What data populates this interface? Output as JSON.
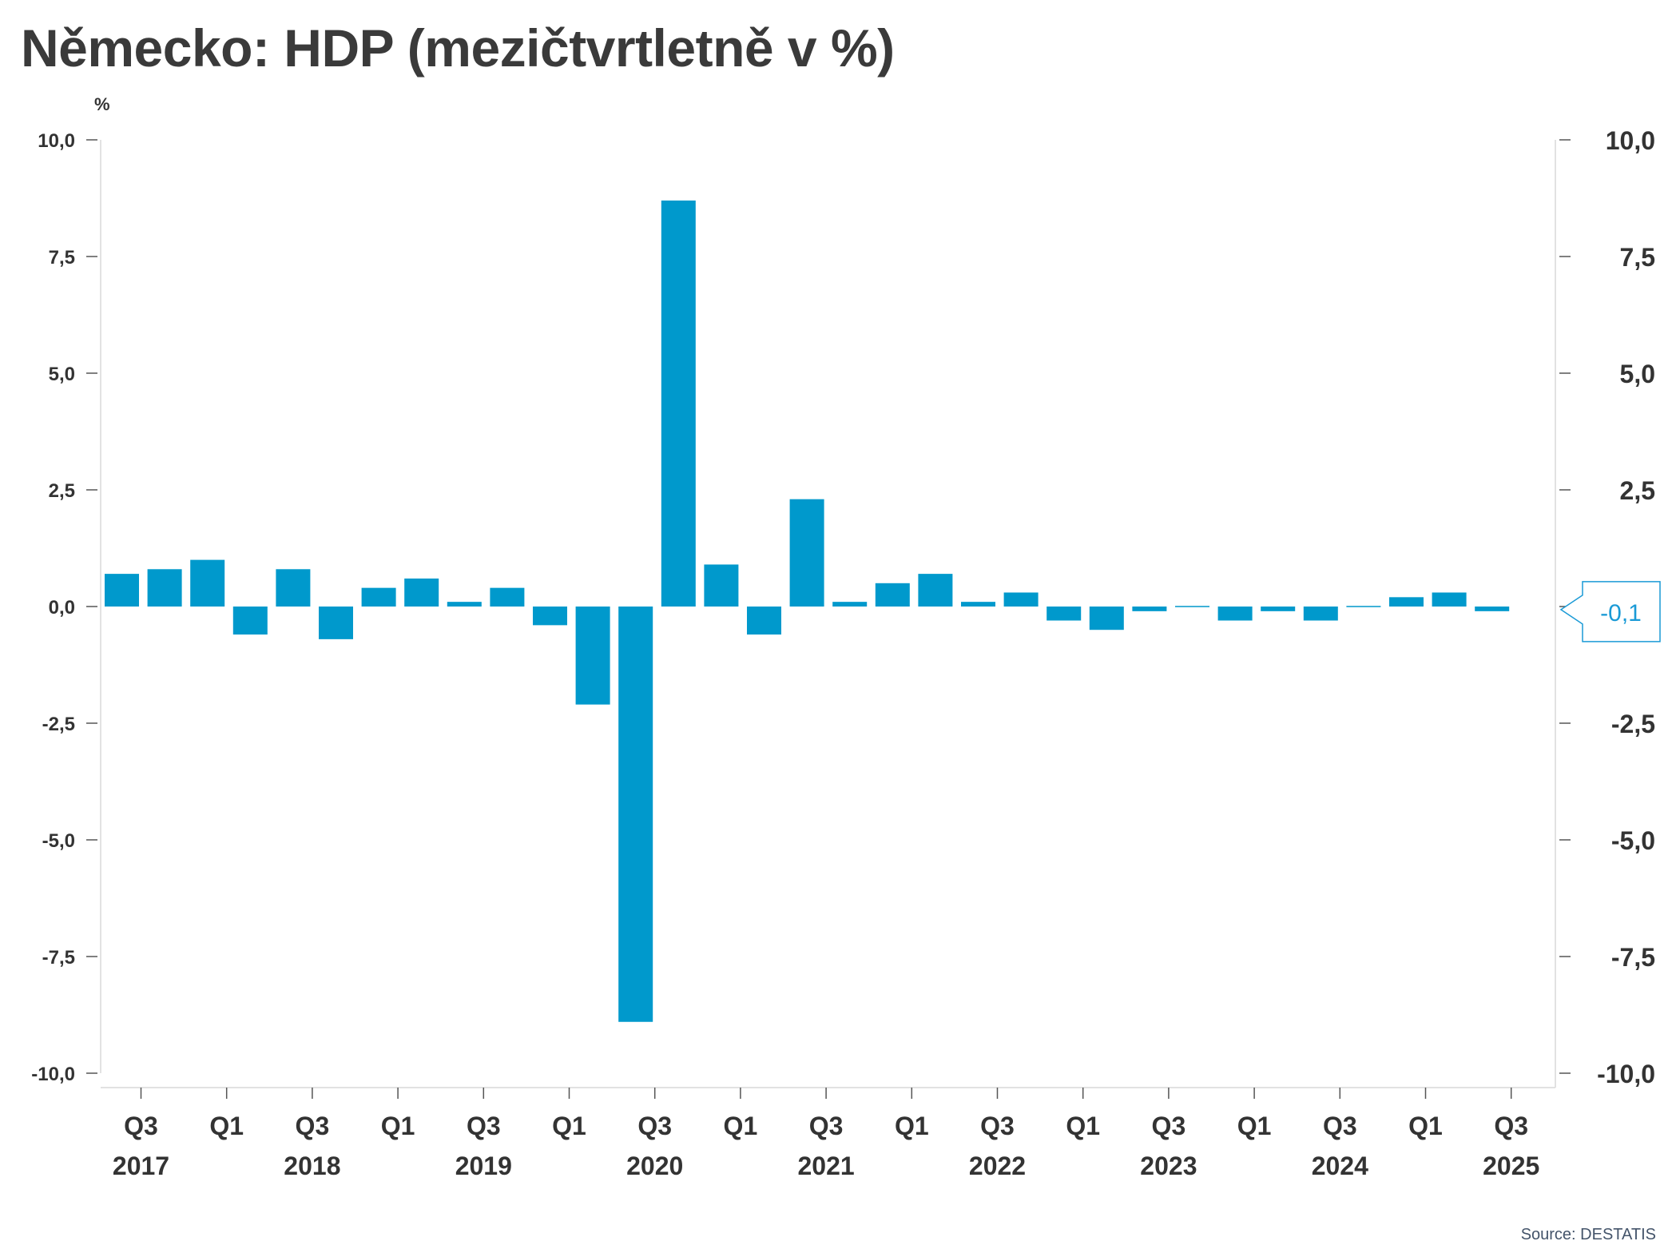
{
  "title": "Německo: HDP (mezičtvrtletně v %)",
  "unit_label": "%",
  "source": "Source: DESTATIS",
  "colors": {
    "bar": "#0099cc",
    "callout": "#1a9ad6",
    "axis": "#d9d9d9",
    "text": "#333333"
  },
  "chart_data": {
    "type": "bar",
    "categories": [
      "2017 Q3",
      "2017 Q4",
      "2018 Q1",
      "2018 Q2",
      "2018 Q3",
      "2018 Q4",
      "2019 Q1",
      "2019 Q2",
      "2019 Q3",
      "2019 Q4",
      "2020 Q1",
      "2020 Q2",
      "2020 Q3",
      "2020 Q4",
      "2021 Q1",
      "2021 Q2",
      "2021 Q3",
      "2021 Q4",
      "2022 Q1",
      "2022 Q2",
      "2022 Q3",
      "2022 Q4",
      "2023 Q1",
      "2023 Q2",
      "2023 Q3",
      "2023 Q4",
      "2024 Q1",
      "2024 Q2",
      "2024 Q3",
      "2024 Q4",
      "2025 Q1",
      "2025 Q2",
      "2025 Q3"
    ],
    "values": [
      0.7,
      0.8,
      1.0,
      -0.6,
      0.8,
      -0.7,
      0.4,
      0.6,
      0.1,
      0.4,
      -0.4,
      -2.1,
      -8.9,
      8.7,
      0.9,
      -0.6,
      2.3,
      0.1,
      0.5,
      0.7,
      0.1,
      0.3,
      -0.3,
      -0.5,
      -0.1,
      0.0,
      -0.3,
      -0.1,
      -0.3,
      0.0,
      0.2,
      0.3,
      -0.1
    ],
    "ylim": [
      -10,
      10
    ],
    "yticks": [
      10,
      7.5,
      5,
      2.5,
      0,
      -2.5,
      -5,
      -7.5,
      -10
    ],
    "ytick_labels": [
      "10,0",
      "7,5",
      "5,0",
      "2,5",
      "0,0",
      "-2,5",
      "-5,0",
      "-7,5",
      "-10,0"
    ],
    "x_tick_labels": [
      {
        "quarter": "Q3",
        "year": "2017"
      },
      {
        "quarter": "Q1",
        "year": ""
      },
      {
        "quarter": "Q3",
        "year": "2018"
      },
      {
        "quarter": "Q1",
        "year": ""
      },
      {
        "quarter": "Q3",
        "year": "2019"
      },
      {
        "quarter": "Q1",
        "year": ""
      },
      {
        "quarter": "Q3",
        "year": "2020"
      },
      {
        "quarter": "Q1",
        "year": ""
      },
      {
        "quarter": "Q3",
        "year": "2021"
      },
      {
        "quarter": "Q1",
        "year": ""
      },
      {
        "quarter": "Q3",
        "year": "2022"
      },
      {
        "quarter": "Q1",
        "year": ""
      },
      {
        "quarter": "Q3",
        "year": "2023"
      },
      {
        "quarter": "Q1",
        "year": ""
      },
      {
        "quarter": "Q3",
        "year": "2024"
      },
      {
        "quarter": "Q1",
        "year": ""
      },
      {
        "quarter": "Q3",
        "year": "2025"
      }
    ],
    "last_value_label": "-0,1",
    "grid": false,
    "legend": "none"
  }
}
